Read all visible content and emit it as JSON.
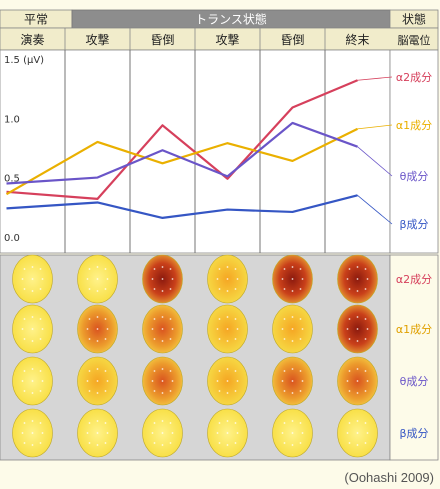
{
  "header": {
    "normal_label": "平常",
    "trance_label": "トランス状態",
    "state_label": "状態",
    "columns": [
      "演奏",
      "攻撃",
      "昏倒",
      "攻撃",
      "昏倒",
      "終末"
    ],
    "brain_label": "脳電位"
  },
  "chart_data": {
    "type": "line",
    "categories": [
      "演奏",
      "攻撃",
      "昏倒",
      "攻撃",
      "昏倒",
      "終末"
    ],
    "ylabel": "1.5 (μV)",
    "yticks": [
      "1.5 (μV)",
      "1.0",
      "0.5",
      "0.0"
    ],
    "ylim": [
      0,
      1.5
    ],
    "grid": false,
    "series": [
      {
        "name": "α2成分",
        "color": "#d6405c",
        "x": [
          0.1,
          1.5,
          2.5,
          3.5,
          4.5,
          5.5
        ],
        "values": [
          0.44,
          0.38,
          1.0,
          0.55,
          1.15,
          1.38
        ]
      },
      {
        "name": "α1成分",
        "color": "#eab000",
        "x": [
          0.1,
          1.5,
          2.5,
          3.5,
          4.5,
          5.5
        ],
        "values": [
          0.42,
          0.86,
          0.68,
          0.85,
          0.7,
          0.97
        ]
      },
      {
        "name": "θ成分",
        "color": "#6a55c8",
        "x": [
          0.1,
          1.5,
          2.5,
          3.5,
          4.5,
          5.5
        ],
        "values": [
          0.51,
          0.56,
          0.79,
          0.57,
          1.02,
          0.82
        ]
      },
      {
        "name": "β成分",
        "color": "#3556c4",
        "x": [
          0.1,
          1.5,
          2.5,
          3.5,
          4.5,
          5.5
        ],
        "values": [
          0.3,
          0.35,
          0.22,
          0.29,
          0.27,
          0.41
        ]
      }
    ]
  },
  "maps": {
    "rows": [
      "α2成分",
      "α1成分",
      "θ成分",
      "β成分"
    ],
    "intensity": [
      [
        0.05,
        0.15,
        0.85,
        0.3,
        0.8,
        0.95
      ],
      [
        0.05,
        0.7,
        0.55,
        0.45,
        0.4,
        0.75
      ],
      [
        0.2,
        0.4,
        0.5,
        0.35,
        0.7,
        0.65
      ],
      [
        0.02,
        0.05,
        0.05,
        0.08,
        0.05,
        0.08
      ]
    ]
  },
  "credit": "(Oohashi 2009)"
}
